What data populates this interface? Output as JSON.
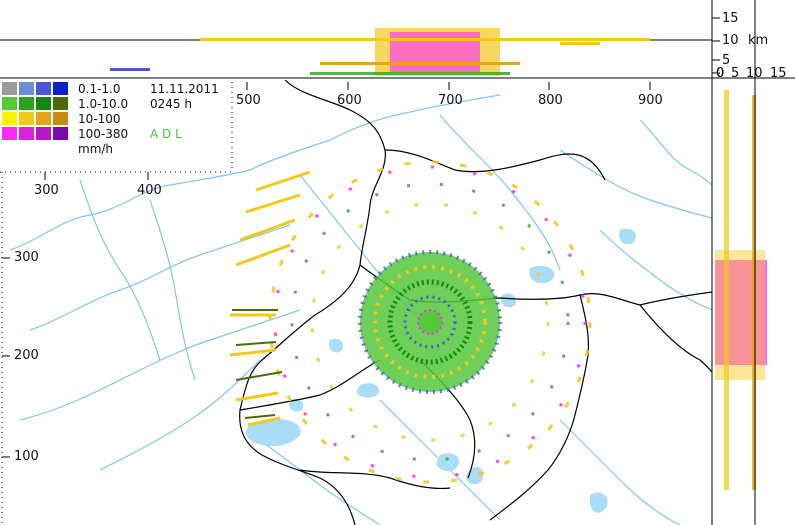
{
  "scale": {
    "km_ticks": [
      "15",
      "10",
      "5",
      "0"
    ],
    "km_unit": "km",
    "side_ticks": [
      "0",
      "5",
      "10",
      "15"
    ],
    "x_ticks_top": [
      "500",
      "600",
      "700",
      "800",
      "900"
    ],
    "x_ticks_left": [
      "300",
      "400"
    ],
    "y_ticks_left": [
      "300",
      "200",
      "100"
    ]
  },
  "legend": {
    "rows": [
      {
        "range": "0.1-1.0",
        "extra": "11.11.2011",
        "colors": [
          "#9b9b9b",
          "#6a8fd8",
          "#4b57d8",
          "#0a1fd0"
        ]
      },
      {
        "range": "1.0-10.0",
        "extra": "0245  h",
        "colors": [
          "#55c83c",
          "#2aa21c",
          "#138a10",
          "#4a6a0a"
        ]
      },
      {
        "range": "10-100",
        "extra": "",
        "colors": [
          "#fff200",
          "#f2c81a",
          "#e6a41c",
          "#c88a10"
        ]
      },
      {
        "range": "100-380",
        "extra": "A D L",
        "colors": [
          "#ff28ff",
          "#e020e0",
          "#b814c8",
          "#7a0aa8"
        ]
      }
    ],
    "unit": "mm/h",
    "radar_code_color": "#3ccc3c"
  },
  "colors": {
    "water": "#a9dcf5",
    "river": "#7fc6ee",
    "border": "#000000"
  }
}
